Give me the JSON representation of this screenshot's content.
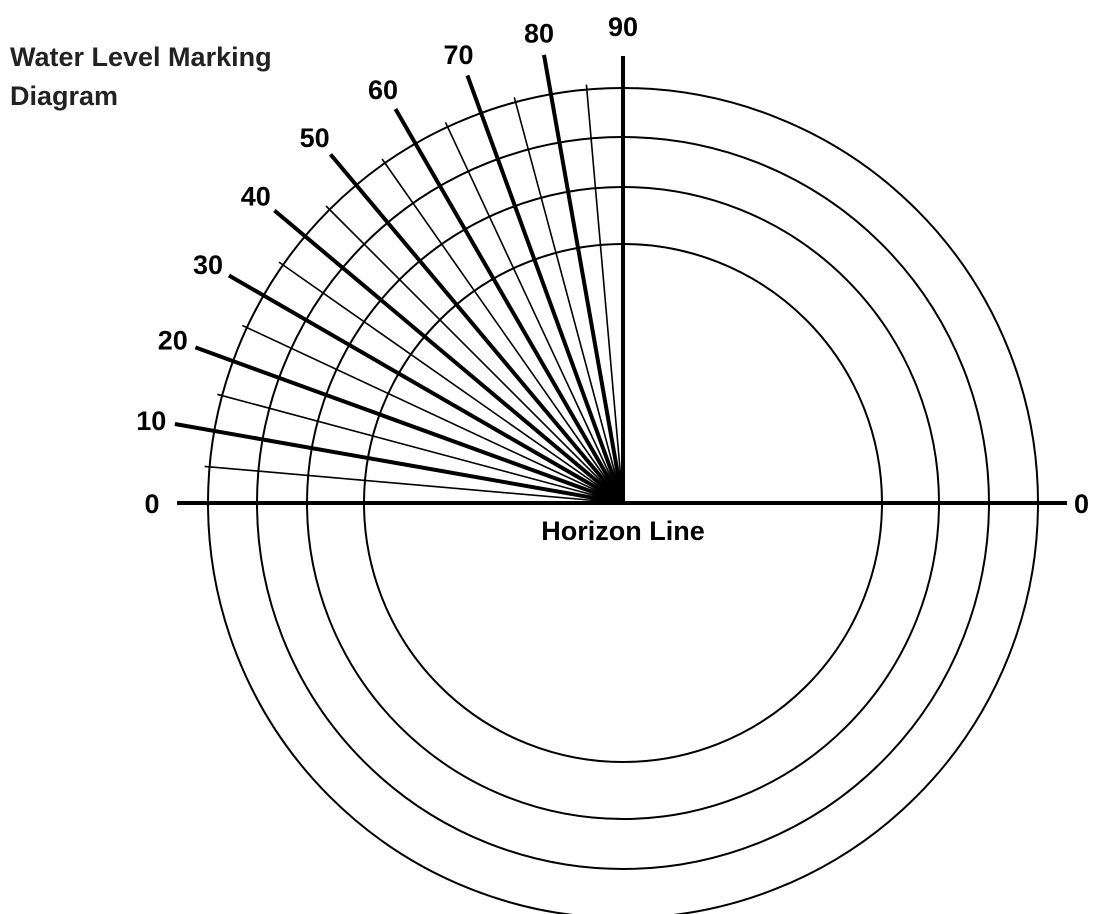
{
  "title": [
    "Water Level Marking",
    "Diagram"
  ],
  "angle_labels": [
    "0",
    "10",
    "20",
    "30",
    "40",
    "50",
    "60",
    "70",
    "80",
    "90"
  ],
  "right_label": "0",
  "horizon_label": "Horizon Line",
  "rays": {
    "labeled_degrees": [
      0,
      10,
      20,
      30,
      40,
      50,
      60,
      70,
      80,
      90
    ],
    "all_degrees": [
      0,
      5,
      10,
      15,
      20,
      25,
      30,
      35,
      40,
      45,
      50,
      55,
      60,
      65,
      70,
      75,
      80,
      85,
      90
    ]
  },
  "circle_count": 4,
  "colors": {
    "line": "#000000",
    "title": "#222222",
    "background": "#ffffff"
  }
}
